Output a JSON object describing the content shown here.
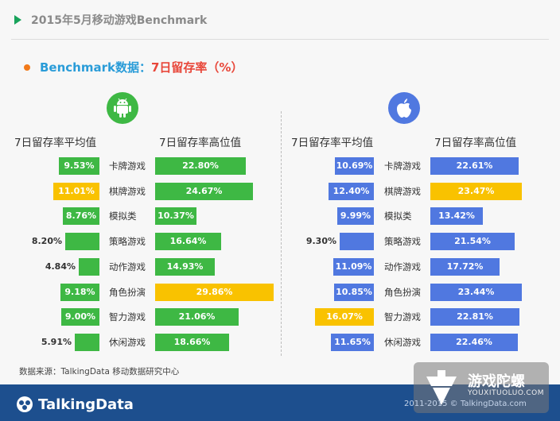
{
  "header": {
    "title": "2015年5月移动游戏Benchmark"
  },
  "subtitle": {
    "part1": "Benchmark数据：",
    "part2": "7日留存率（%）"
  },
  "colors": {
    "android": "#3eb844",
    "ios": "#5078e0",
    "highlight": "#f9c200",
    "accent": "#2a9cd8"
  },
  "icons": {
    "android": "android-icon",
    "ios": "apple-icon"
  },
  "source": "数据来源：TalkingData 移动数据研究中心",
  "footer": {
    "logo": "TalkingData",
    "copyright": "2011-2015 © TalkingData.com"
  },
  "watermark": {
    "name": "游戏陀螺",
    "url": "YOUXITUOLUO.COM"
  },
  "chart_data": [
    {
      "type": "bar",
      "platform": "Android",
      "categories": [
        "卡牌游戏",
        "棋牌游戏",
        "模拟类",
        "策略游戏",
        "动作游戏",
        "角色扮演",
        "智力游戏",
        "休闲游戏"
      ],
      "series": [
        {
          "name": "7日留存率平均值",
          "values": [
            9.53,
            11.01,
            8.76,
            8.2,
            4.84,
            9.18,
            9.0,
            5.91
          ],
          "labels": [
            "9.53%",
            "11.01%",
            "8.76%",
            "8.20%",
            "4.84%",
            "9.18%",
            "9.00%",
            "5.91%"
          ],
          "highlight_index": 1
        },
        {
          "name": "7日留存率高位值",
          "values": [
            22.8,
            24.67,
            10.37,
            16.64,
            14.93,
            29.86,
            21.06,
            18.66
          ],
          "labels": [
            "22.80%",
            "24.67%",
            "10.37%",
            "16.64%",
            "14.93%",
            "29.86%",
            "21.06%",
            "18.66%"
          ],
          "highlight_index": 5
        }
      ]
    },
    {
      "type": "bar",
      "platform": "iOS",
      "categories": [
        "卡牌游戏",
        "棋牌游戏",
        "模拟类",
        "策略游戏",
        "动作游戏",
        "角色扮演",
        "智力游戏",
        "休闲游戏"
      ],
      "series": [
        {
          "name": "7日留存率平均值",
          "values": [
            10.69,
            12.4,
            9.99,
            9.3,
            11.09,
            10.85,
            16.07,
            11.65
          ],
          "labels": [
            "10.69%",
            "12.40%",
            "9.99%",
            "9.30%",
            "11.09%",
            "10.85%",
            "16.07%",
            "11.65%"
          ],
          "highlight_index": 6
        },
        {
          "name": "7日留存率高位值",
          "values": [
            22.61,
            23.47,
            13.42,
            21.54,
            17.72,
            23.44,
            22.81,
            22.46
          ],
          "labels": [
            "22.61%",
            "23.47%",
            "13.42%",
            "21.54%",
            "17.72%",
            "23.44%",
            "22.81%",
            "22.46%"
          ],
          "highlight_index": 1
        }
      ]
    }
  ]
}
